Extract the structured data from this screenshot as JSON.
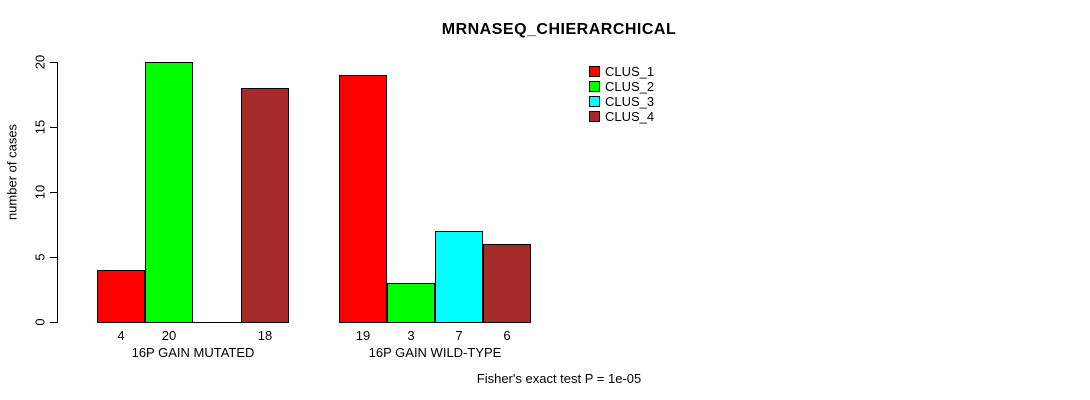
{
  "chart_data": {
    "type": "bar",
    "title": "MRNASEQ_CHIERARCHICAL",
    "ylabel": "number of cases",
    "xlabel": "",
    "ylim": [
      0,
      20
    ],
    "yticks": [
      0,
      5,
      10,
      15,
      20
    ],
    "grid": false,
    "legend_position": "top-right",
    "categories": [
      "16P GAIN MUTATED",
      "16P GAIN WILD-TYPE"
    ],
    "series": [
      {
        "name": "CLUS_1",
        "color": "#FF0000",
        "values": [
          4,
          19
        ]
      },
      {
        "name": "CLUS_2",
        "color": "#00FF00",
        "values": [
          20,
          3
        ]
      },
      {
        "name": "CLUS_3",
        "color": "#00FFFF",
        "values": [
          0,
          7
        ]
      },
      {
        "name": "CLUS_4",
        "color": "#A52A2A",
        "values": [
          18,
          6
        ]
      }
    ],
    "bar_labels": [
      [
        "4",
        "20",
        "",
        "18"
      ],
      [
        "19",
        "3",
        "7",
        "6"
      ]
    ],
    "annotation": "Fisher's exact test P = 1e-05"
  }
}
